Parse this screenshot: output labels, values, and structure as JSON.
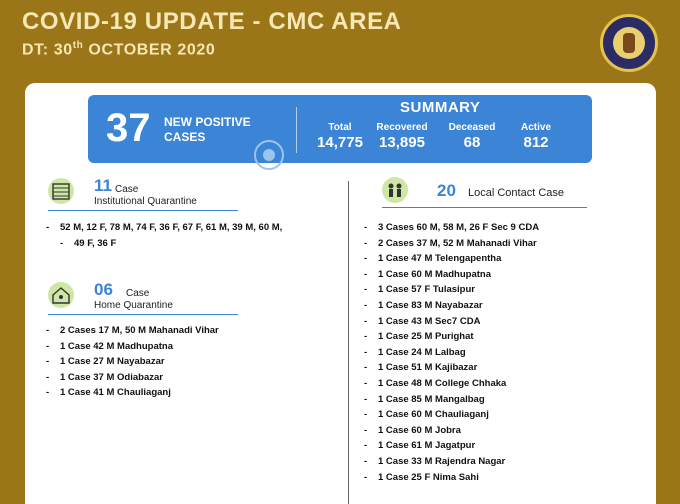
{
  "header": {
    "title": "COVID-19 UPDATE - CMC AREA",
    "date_prefix": "DT: 30",
    "date_sup": "th",
    "date_suffix": " OCTOBER 2020"
  },
  "summary": {
    "new_positive_count": "37",
    "new_positive_line1": "NEW POSITIVE",
    "new_positive_line2": "CASES",
    "title": "SUMMARY",
    "stats": [
      {
        "label": "Total",
        "value": "14,775"
      },
      {
        "label": "Recovered",
        "value": "13,895"
      },
      {
        "label": "Deceased",
        "value": "68"
      },
      {
        "label": "Active",
        "value": "812"
      }
    ]
  },
  "institutional": {
    "count": "11",
    "label1": "Case",
    "label2": "Institutional Quarantine",
    "items": [
      "52 M, 12 F, 78 M, 74 F, 36 F, 67 F, 61 M, 39 M, 60 M,",
      "49 F, 36 F"
    ]
  },
  "home": {
    "count": "06",
    "label1": "Case",
    "label2": "Home Quarantine",
    "items": [
      "2 Cases 17 M, 50 M Mahanadi Vihar",
      "1 Case 42 M Madhupatna",
      "1 Case 27 M Nayabazar",
      "1 Case 37 M Odiabazar",
      "1 Case 41 M Chauliaganj"
    ]
  },
  "local": {
    "count": "20",
    "label": "Local Contact Case",
    "items": [
      "3 Cases 60 M, 58 M, 26 F Sec 9 CDA",
      "2 Cases 37 M, 52 M Mahanadi Vihar",
      "1 Case 47 M Telengapentha",
      "1 Case 60 M Madhupatna",
      "1 Case 57 F Tulasipur",
      "1 Case 83 M Nayabazar",
      "1 Case 43 M Sec7 CDA",
      "1 Case 25 M Purighat",
      "1 Case 24 M Lalbag",
      "1 Case 51 M Kajibazar",
      "1 Case 48 M College Chhaka",
      "1 Case 85 M Mangalbag",
      "1 Case 60 M Chauliaganj",
      "1 Case 60 M Jobra",
      "1 Case 61 M Jagatpur",
      "1 Case 33 M Rajendra Nagar",
      "1 Case 25 F Nima Sahi"
    ]
  },
  "colors": {
    "background": "#9a7618",
    "accent": "#3b84d6",
    "header_text": "#f6e7b4"
  }
}
